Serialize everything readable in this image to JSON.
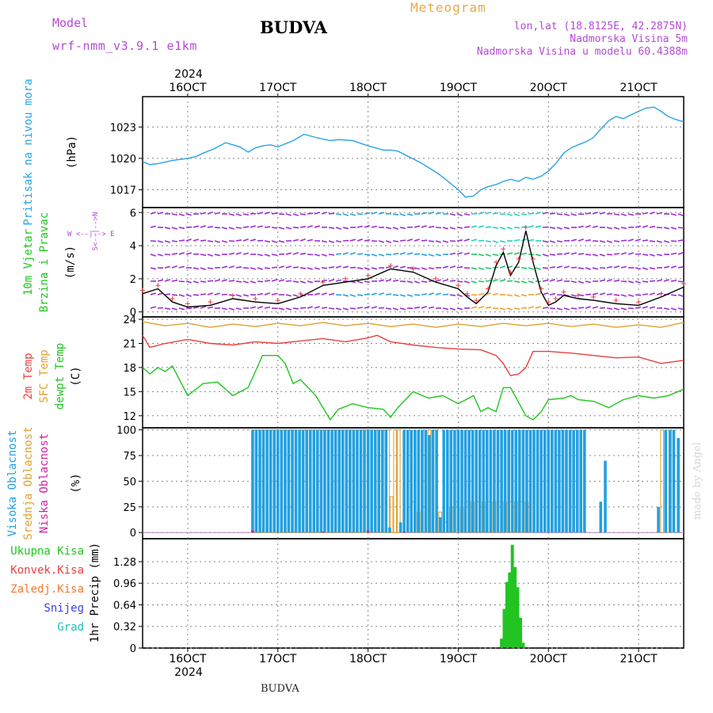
{
  "header": {
    "model_label": "Model",
    "model_name": "wrf-nmm_v3.9.1 e1km",
    "station": "BUDVA",
    "meteogram_label": "Meteogram",
    "lonlat": "lon,lat (18.8125E, 42.2875N)",
    "elevation": "Nadmorska Visina 5m",
    "model_elevation": "Nadmorska Visina u modelu 60.4388m"
  },
  "footer": {
    "station": "BUDVA"
  },
  "watermark": "made by Angel",
  "colors": {
    "pressure": "#2aa3e8",
    "temp2m": "#e84040",
    "sfc_temp": "#e0a030",
    "dewpoint": "#22c422",
    "high_cloud": "#22a0e0",
    "mid_cloud": "#e0a030",
    "low_cloud": "#d020a0",
    "precip_total": "#22c422",
    "convective": "#e84040",
    "freezing": "#f07830",
    "snow": "#4040e0",
    "hail": "#20c0c0",
    "purple": "#b44ad6"
  },
  "time_axis": {
    "year": "2024",
    "days": [
      {
        "label": "16OCT",
        "day": 16
      },
      {
        "label": "17OCT",
        "day": 17
      },
      {
        "label": "18OCT",
        "day": 18
      },
      {
        "label": "19OCT",
        "day": 19
      },
      {
        "label": "20OCT",
        "day": 20
      },
      {
        "label": "21OCT",
        "day": 21
      }
    ],
    "range_days": [
      15.5,
      21.5
    ]
  },
  "panels": {
    "pressure": {
      "title": "Pritisak na nivou mora",
      "unit": "(hPa)"
    },
    "wind": {
      "title_line1": "10m Vjetar",
      "title_line2": "Brzina i Pravac",
      "unit": "(m/s)",
      "compass_wind": "W  <--|-->  E",
      "compass_ns": "S<--|-->N"
    },
    "temperature": {
      "title1": "2m Temp",
      "title2": "SFC Temp",
      "title3": "dewpt Temp",
      "unit": "(C)"
    },
    "cloud": {
      "title1": "Visoka Oblacnost",
      "title2": "Srednja Oblacnost",
      "title3": "Niska Oblacnost",
      "unit": "(%)"
    },
    "precip": {
      "unit": "1hr Precip (mm)",
      "legend": [
        "Ukupna Kisa",
        "Konvek.Kisa",
        "Zaledj.Kisa",
        "Snijeg",
        "Grad"
      ]
    }
  },
  "chart_data": [
    {
      "type": "line",
      "title": "Pritisak na nivou mora",
      "ylabel": "(hPa)",
      "ylim": [
        1015.3,
        1025.9
      ],
      "yticks": [
        1017,
        1020,
        1023
      ],
      "grid": true,
      "series": [
        {
          "x": [
            15.5,
            15.58,
            15.67,
            15.83,
            16.0,
            16.1,
            16.17,
            16.29,
            16.42,
            16.58,
            16.67,
            16.75,
            16.83,
            16.92,
            17.0,
            17.17,
            17.29,
            17.42,
            17.58,
            17.67,
            17.83,
            18.0,
            18.17,
            18.25,
            18.33,
            18.58,
            18.75,
            18.83,
            19.0,
            19.08,
            19.17,
            19.25,
            19.33,
            19.42,
            19.5,
            19.58,
            19.67,
            19.75,
            19.83,
            19.92,
            20.0,
            20.08,
            20.17,
            20.25,
            20.33,
            20.42,
            20.5,
            20.58,
            20.67,
            20.75,
            20.83,
            21.0,
            21.08,
            21.17,
            21.25,
            21.33,
            21.42,
            21.5
          ],
          "values": [
            1019.7,
            1019.4,
            1019.5,
            1019.8,
            1020.0,
            1020.2,
            1020.5,
            1020.9,
            1021.5,
            1021.1,
            1020.6,
            1021.0,
            1021.2,
            1021.3,
            1021.1,
            1021.7,
            1022.3,
            1022.0,
            1021.7,
            1021.8,
            1021.7,
            1021.2,
            1020.8,
            1020.8,
            1020.7,
            1019.6,
            1018.7,
            1018.2,
            1017.0,
            1016.3,
            1016.4,
            1017.0,
            1017.3,
            1017.5,
            1017.8,
            1018.0,
            1017.8,
            1018.2,
            1018.0,
            1018.3,
            1018.8,
            1019.5,
            1020.5,
            1021.0,
            1021.3,
            1021.6,
            1022.0,
            1022.8,
            1023.6,
            1024.0,
            1023.8,
            1024.5,
            1024.8,
            1024.9,
            1024.5,
            1024.0,
            1023.7,
            1023.5
          ]
        }
      ]
    },
    {
      "type": "line",
      "title": "10m Vjetar Brzina i Pravac",
      "ylabel": "(m/s)",
      "ylim": [
        -0.3,
        6.3
      ],
      "yticks": [
        0,
        2,
        4,
        6
      ],
      "grid": true,
      "series": [
        {
          "x": [
            15.5,
            15.67,
            15.83,
            16.0,
            16.25,
            16.5,
            16.75,
            17.0,
            17.25,
            17.5,
            17.75,
            18.0,
            18.25,
            18.5,
            18.75,
            19.0,
            19.1,
            19.2,
            19.33,
            19.42,
            19.5,
            19.58,
            19.67,
            19.75,
            19.83,
            19.92,
            20.0,
            20.08,
            20.17,
            20.33,
            20.5,
            20.75,
            21.0,
            21.25,
            21.5
          ],
          "values": [
            1.1,
            1.4,
            0.6,
            0.3,
            0.4,
            0.8,
            0.6,
            0.5,
            0.9,
            1.6,
            1.8,
            2.0,
            2.6,
            2.4,
            1.8,
            1.4,
            0.9,
            0.5,
            1.2,
            2.8,
            3.6,
            2.2,
            3.0,
            4.9,
            3.0,
            1.2,
            0.4,
            0.6,
            1.0,
            0.8,
            0.7,
            0.5,
            0.4,
            0.9,
            1.5
          ]
        }
      ]
    },
    {
      "type": "line",
      "title": "2m Temp / SFC Temp / dewpt Temp",
      "ylabel": "(C)",
      "ylim": [
        10.5,
        24.3
      ],
      "yticks": [
        12,
        15,
        18,
        21,
        24
      ],
      "grid": true,
      "series": [
        {
          "name": "2m Temp",
          "x": [
            15.5,
            15.58,
            15.75,
            16.0,
            16.25,
            16.5,
            16.75,
            17.0,
            17.25,
            17.5,
            17.75,
            18.0,
            18.1,
            18.25,
            18.5,
            18.75,
            19.0,
            19.25,
            19.42,
            19.5,
            19.58,
            19.67,
            19.75,
            19.83,
            20.0,
            20.25,
            20.5,
            20.75,
            21.0,
            21.25,
            21.5
          ],
          "values": [
            22.0,
            20.5,
            21.0,
            21.5,
            21.0,
            20.8,
            21.2,
            21.0,
            21.3,
            21.6,
            21.2,
            21.7,
            22.0,
            21.2,
            20.8,
            20.5,
            20.3,
            20.2,
            19.5,
            18.5,
            17.0,
            17.2,
            18.0,
            20.0,
            20.0,
            19.8,
            19.5,
            19.2,
            19.3,
            18.5,
            18.9
          ]
        },
        {
          "name": "SFC Temp",
          "x": [
            15.5,
            15.75,
            16.0,
            16.25,
            16.5,
            16.75,
            17.0,
            17.25,
            17.5,
            17.75,
            18.0,
            18.25,
            18.5,
            18.75,
            19.0,
            19.25,
            19.5,
            19.75,
            20.0,
            20.25,
            20.5,
            20.75,
            21.0,
            21.25,
            21.5
          ],
          "values": [
            23.7,
            23.2,
            23.5,
            23.0,
            23.4,
            23.1,
            23.5,
            23.2,
            23.6,
            23.2,
            23.5,
            23.1,
            23.4,
            23.0,
            23.4,
            23.1,
            23.5,
            23.2,
            23.5,
            23.1,
            23.4,
            23.0,
            23.3,
            23.0,
            23.6
          ]
        },
        {
          "name": "dewpt Temp",
          "x": [
            15.5,
            15.58,
            15.67,
            15.75,
            15.83,
            16.0,
            16.17,
            16.33,
            16.5,
            16.67,
            16.75,
            16.83,
            17.0,
            17.08,
            17.17,
            17.25,
            17.42,
            17.58,
            17.67,
            17.83,
            18.0,
            18.17,
            18.25,
            18.33,
            18.5,
            18.67,
            18.83,
            19.0,
            19.17,
            19.25,
            19.33,
            19.42,
            19.5,
            19.58,
            19.75,
            19.83,
            19.92,
            20.0,
            20.17,
            20.25,
            20.33,
            20.5,
            20.67,
            20.83,
            21.0,
            21.17,
            21.33,
            21.5
          ],
          "values": [
            18.0,
            17.2,
            18.0,
            17.5,
            18.2,
            14.5,
            16.0,
            16.2,
            14.5,
            15.5,
            17.5,
            19.5,
            19.5,
            18.5,
            16.0,
            16.5,
            14.5,
            11.5,
            12.8,
            13.5,
            13.0,
            12.8,
            11.8,
            13.0,
            15.0,
            14.2,
            14.5,
            13.5,
            14.5,
            12.5,
            13.0,
            12.5,
            15.5,
            15.5,
            12.0,
            11.5,
            12.5,
            14.0,
            14.2,
            14.5,
            14.0,
            13.8,
            13.0,
            14.0,
            14.5,
            14.2,
            14.5,
            15.3
          ]
        }
      ]
    },
    {
      "type": "bar",
      "title": "Visoka / Srednja / Niska Oblacnost",
      "ylabel": "(%)",
      "ylim": [
        -6,
        102
      ],
      "yticks": [
        0,
        25,
        50,
        75,
        100
      ],
      "grid": true,
      "series": [
        {
          "name": "Visoka Oblacnost",
          "x": [
            16.72,
            16.76,
            16.8,
            16.84,
            16.88,
            16.92,
            16.96,
            17.0,
            17.04,
            17.08,
            17.12,
            17.16,
            17.2,
            17.24,
            17.28,
            17.32,
            17.36,
            17.4,
            17.44,
            17.48,
            17.52,
            17.56,
            17.6,
            17.64,
            17.68,
            17.72,
            17.76,
            17.8,
            17.84,
            17.88,
            17.92,
            17.96,
            18.0,
            18.04,
            18.08,
            18.12,
            18.16,
            18.2,
            18.24,
            18.28,
            18.32,
            18.36,
            18.4,
            18.44,
            18.48,
            18.52,
            18.56,
            18.6,
            18.64,
            18.68,
            18.72,
            18.76,
            18.8,
            18.84,
            18.88,
            18.92,
            18.96,
            19.0,
            19.04,
            19.08,
            19.12,
            19.16,
            19.2,
            19.24,
            19.28,
            19.32,
            19.36,
            19.4,
            19.44,
            19.48,
            19.52,
            19.56,
            19.6,
            19.64,
            19.68,
            19.72,
            19.76,
            19.8,
            19.84,
            19.88,
            19.92,
            19.96,
            20.0,
            20.04,
            20.08,
            20.12,
            20.16,
            20.2,
            20.24,
            20.28,
            20.32,
            20.36,
            20.4,
            20.58,
            20.63,
            21.22,
            21.3,
            21.35,
            21.39,
            21.44
          ],
          "values": [
            100,
            100,
            100,
            100,
            100,
            100,
            100,
            100,
            100,
            100,
            100,
            100,
            100,
            100,
            100,
            100,
            100,
            100,
            100,
            100,
            100,
            100,
            100,
            100,
            100,
            100,
            100,
            100,
            100,
            100,
            100,
            100,
            100,
            100,
            100,
            100,
            100,
            100,
            5,
            0,
            0,
            10,
            100,
            100,
            100,
            100,
            100,
            100,
            100,
            95,
            100,
            100,
            15,
            100,
            100,
            100,
            100,
            100,
            100,
            100,
            100,
            100,
            100,
            100,
            100,
            100,
            100,
            100,
            100,
            100,
            100,
            100,
            100,
            100,
            100,
            100,
            100,
            100,
            100,
            100,
            100,
            100,
            100,
            100,
            100,
            100,
            100,
            100,
            100,
            100,
            100,
            100,
            100,
            30,
            70,
            25,
            100,
            100,
            100,
            92
          ]
        },
        {
          "name": "Srednja Oblacnost",
          "x": [
            16.74,
            16.78,
            16.82,
            16.86,
            16.9,
            16.94,
            16.98,
            17.02,
            17.06,
            17.1,
            17.14,
            17.18,
            17.22,
            17.26,
            17.3,
            17.34,
            17.38,
            17.42,
            17.46,
            17.5,
            17.54,
            17.58,
            17.62,
            17.66,
            17.7,
            17.74,
            17.78,
            17.82,
            17.86,
            17.9,
            17.94,
            17.98,
            18.02,
            18.06,
            18.1,
            18.14,
            18.18,
            18.22,
            18.26,
            18.3,
            18.34,
            18.5,
            18.56,
            18.62,
            18.68,
            18.74,
            18.8,
            18.86,
            18.92,
            18.98,
            19.04,
            19.1,
            19.16,
            19.22,
            19.28,
            19.34,
            19.4,
            19.46,
            19.52,
            19.58,
            19.64,
            19.7,
            19.76,
            21.26,
            21.32
          ],
          "values": [
            100,
            100,
            100,
            100,
            100,
            100,
            100,
            100,
            100,
            100,
            100,
            100,
            100,
            100,
            100,
            100,
            100,
            100,
            100,
            100,
            100,
            100,
            100,
            100,
            100,
            100,
            100,
            100,
            100,
            100,
            100,
            100,
            100,
            100,
            100,
            100,
            100,
            100,
            35,
            100,
            100,
            30,
            20,
            50,
            100,
            100,
            20,
            10,
            25,
            30,
            25,
            30,
            30,
            30,
            30,
            30,
            30,
            30,
            30,
            30,
            30,
            30,
            30,
            100,
            100
          ]
        },
        {
          "name": "Niska Oblacnost",
          "x": [
            16.72,
            17.5,
            18.0,
            18.4
          ],
          "values": [
            2,
            1,
            2,
            1
          ]
        }
      ]
    },
    {
      "type": "bar",
      "title": "1hr Precip",
      "ylabel": "1hr Precip (mm)",
      "ylim": [
        0,
        1.62
      ],
      "yticks": [
        0,
        0.32,
        0.64,
        0.96,
        1.28
      ],
      "grid": true,
      "series": [
        {
          "name": "Ukupna Kisa",
          "x": [
            19.48,
            19.51,
            19.54,
            19.57,
            19.6,
            19.63,
            19.66,
            19.69,
            19.72
          ],
          "values": [
            0.14,
            0.58,
            0.98,
            1.12,
            1.53,
            1.2,
            0.9,
            0.45,
            0.08
          ]
        }
      ]
    }
  ]
}
